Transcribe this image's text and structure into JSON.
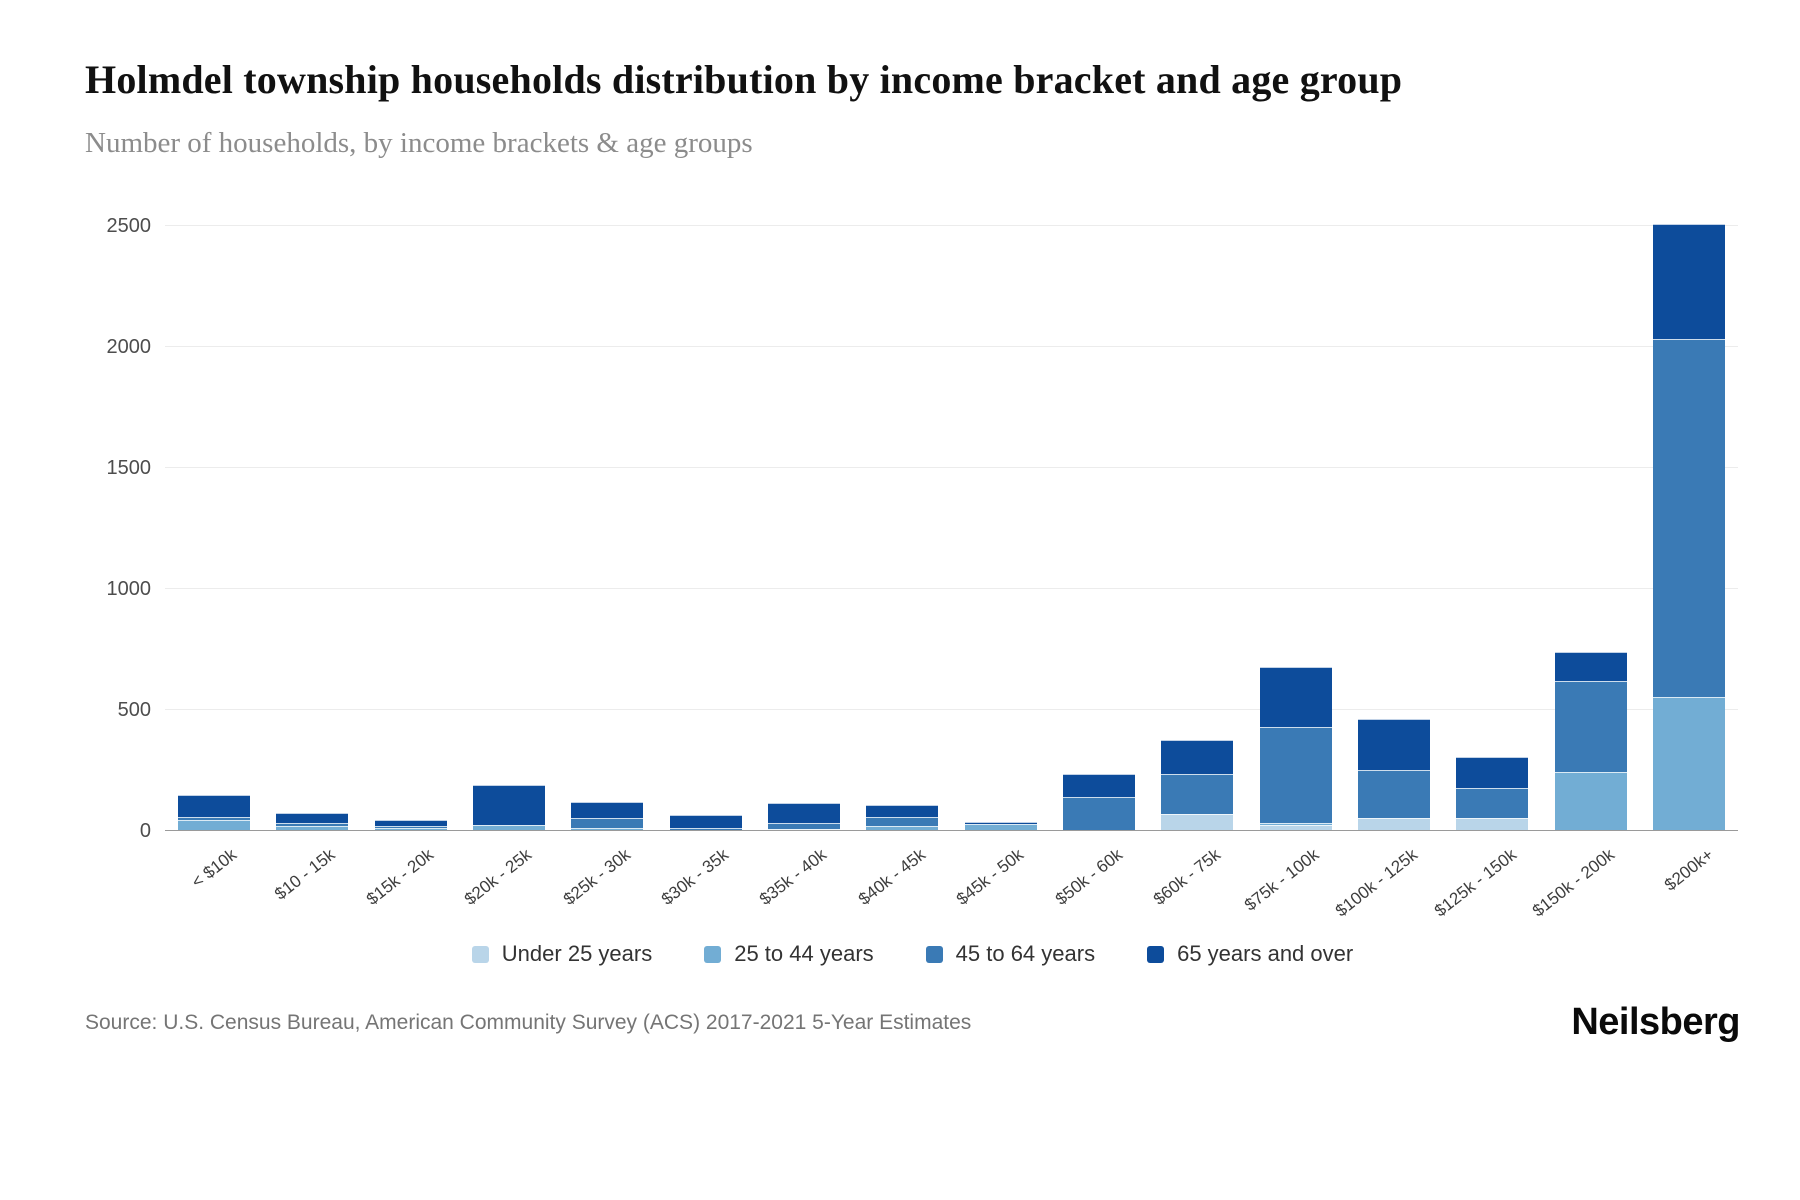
{
  "chart_data": {
    "type": "bar",
    "stacked": true,
    "title": "Holmdel township households distribution by income bracket and age group",
    "subtitle": "Number of households, by income brackets & age groups",
    "categories": [
      "< $10k",
      "$10 - 15k",
      "$15k - 20k",
      "$20k - 25k",
      "$25k - 30k",
      "$30k - 35k",
      "$35k - 40k",
      "$40k - 45k",
      "$45k - 50k",
      "$50k - 60k",
      "$60k - 75k",
      "$75k - 100k",
      "$100k - 125k",
      "$125k - 150k",
      "$150k - 200k",
      "$200k+"
    ],
    "series": [
      {
        "name": "Under 25 years",
        "color": "#b9d5e9",
        "values": [
          0,
          0,
          0,
          0,
          0,
          0,
          10,
          0,
          0,
          0,
          70,
          25,
          55,
          55,
          0,
          0
        ]
      },
      {
        "name": "25 to 44 years",
        "color": "#72add4",
        "values": [
          45,
          20,
          12,
          25,
          15,
          0,
          0,
          20,
          30,
          0,
          0,
          10,
          0,
          0,
          245,
          555
        ]
      },
      {
        "name": "45 to 64 years",
        "color": "#3a7ab5",
        "values": [
          15,
          15,
          8,
          0,
          40,
          15,
          25,
          40,
          0,
          140,
          165,
          395,
          200,
          125,
          375,
          1480
        ]
      },
      {
        "name": "65 years and over",
        "color": "#0d4c9b",
        "values": [
          90,
          40,
          28,
          165,
          65,
          50,
          80,
          50,
          10,
          95,
          140,
          250,
          210,
          125,
          120,
          475
        ]
      }
    ],
    "y_ticks": [
      0,
      500,
      1000,
      1500,
      2000,
      2500
    ],
    "ylim": [
      0,
      2550
    ],
    "grid": "horizontal",
    "legend_position": "bottom"
  },
  "footer": {
    "source": "Source: U.S. Census Bureau, American Community Survey (ACS) 2017-2021 5-Year Estimates",
    "brand": "Neilsberg"
  }
}
